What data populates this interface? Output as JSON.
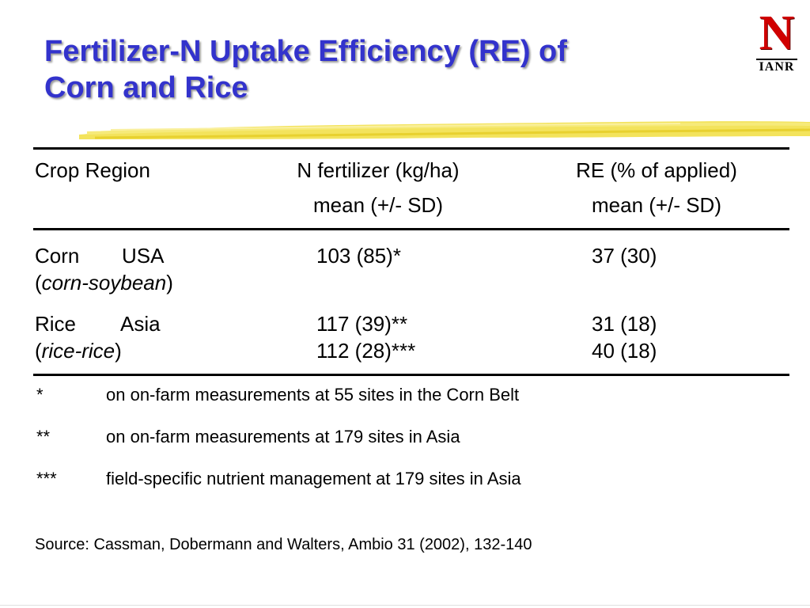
{
  "slide": {
    "title_line1": "Fertilizer-N Uptake Efficiency (RE) of",
    "title_line2": "Corn and Rice"
  },
  "logo": {
    "letter": "N",
    "text": "IANR",
    "colors": {
      "letter": "#d00000",
      "text": "#000000"
    }
  },
  "colors": {
    "title": "#3333cc",
    "title_shadow": "#9a9a9a",
    "brush_stroke": "#f2e04a",
    "text": "#000000"
  },
  "table": {
    "headers": {
      "col1": "Crop Region",
      "col2_line1": "N fertilizer (kg/ha)",
      "col2_line2": "mean (+/- SD)",
      "col3_line1": "RE (% of applied)",
      "col3_line2": "mean (+/- SD)"
    },
    "rows": [
      {
        "crop": "Corn",
        "region": "USA",
        "system": "corn-soybean",
        "n_fertilizer": [
          "103  (85)*"
        ],
        "re": [
          "37  (30)"
        ]
      },
      {
        "crop": "Rice",
        "region": "Asia",
        "system": "rice-rice",
        "n_fertilizer": [
          "117  (39)**",
          "112  (28)***"
        ],
        "re": [
          "31  (18)",
          "40  (18)"
        ]
      }
    ]
  },
  "footnotes": [
    {
      "mark": "*",
      "text": "on on-farm measurements at 55 sites in the Corn Belt"
    },
    {
      "mark": "**",
      "text": "on on-farm measurements at 179 sites in Asia"
    },
    {
      "mark": "***",
      "text": "field-specific nutrient management at 179 sites in Asia"
    }
  ],
  "source": "Source: Cassman, Dobermann and Walters, Ambio 31 (2002), 132-140"
}
